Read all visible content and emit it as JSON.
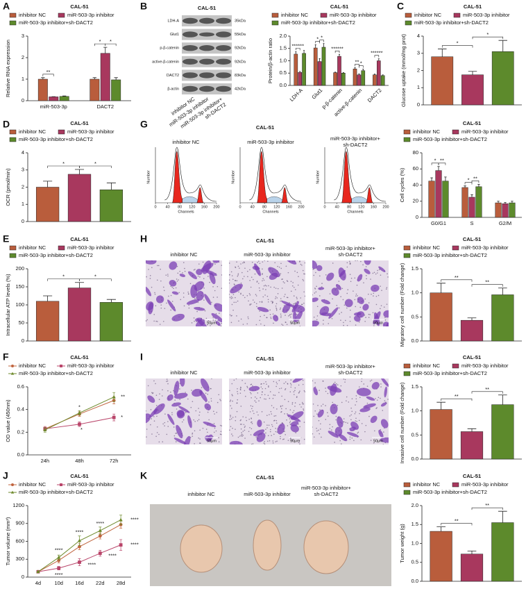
{
  "panel_labels": [
    "A",
    "B",
    "C",
    "D",
    "E",
    "F",
    "G",
    "H",
    "I",
    "J",
    "K"
  ],
  "chart_data": [
    {
      "type": "bar",
      "title": "CAL-51",
      "ylabel": "Relative RNA expression",
      "categories": [
        "miR-503-3p",
        "DACT2"
      ],
      "series": [
        {
          "name": "inhibitor NC",
          "color": "#b95d3c",
          "values": [
            1.0,
            1.0
          ],
          "errors": [
            0.07,
            0.07
          ]
        },
        {
          "name": "miR-503-3p inhibitor",
          "color": "#a8385e",
          "values": [
            0.18,
            2.2
          ],
          "errors": [
            0.01,
            0.28
          ]
        },
        {
          "name": "miR-503-3p inhibitor+sh-DACT2",
          "color": "#5d8a2c",
          "values": [
            0.2,
            0.97
          ],
          "errors": [
            0.02,
            0.1
          ]
        }
      ],
      "ylim": [
        0,
        3
      ],
      "yticks": [
        0,
        1,
        2,
        3
      ],
      "annotations": [
        "**",
        "*",
        "*"
      ]
    },
    {
      "type": "bar",
      "title": "CAL-51",
      "ylabel": "Protein/β-actin ratio",
      "categories": [
        "LDH-A",
        "Glut1",
        "p-β-catenin",
        "active-β-catenin",
        "DACT2"
      ],
      "series": [
        {
          "name": "inhibitor NC",
          "color": "#b95d3c",
          "values": [
            1.27,
            1.52,
            0.52,
            0.67,
            0.43
          ],
          "errors": [
            0.1,
            0.13,
            0.02,
            0.05,
            0.03
          ]
        },
        {
          "name": "miR-503-3p inhibitor",
          "color": "#a8385e",
          "values": [
            0.53,
            0.97,
            1.18,
            0.43,
            1.0
          ],
          "errors": [
            0.04,
            0.12,
            0.08,
            0.04,
            0.08
          ]
        },
        {
          "name": "miR-503-3p inhibitor+sh-DACT2",
          "color": "#5d8a2c",
          "values": [
            1.3,
            1.55,
            0.5,
            0.6,
            0.4
          ],
          "errors": [
            0.12,
            0.15,
            0.02,
            0.06,
            0.03
          ]
        }
      ],
      "ylim": [
        0,
        2
      ],
      "yticks": [
        {
          "value": 0,
          "label": "0.0"
        },
        0.5,
        {
          "value": 1,
          "label": "1.0"
        },
        1.5,
        {
          "value": 2,
          "label": "2.0"
        }
      ],
      "annotations": [
        "******",
        "*",
        "*",
        "******",
        "**",
        "*",
        "******"
      ]
    },
    {
      "type": "bar",
      "title": "CAL-51",
      "ylabel": "Glucose uptake (mmol/mg prot)",
      "series": [
        {
          "name": "inhibitor NC",
          "color": "#b95d3c",
          "values": [
            2.8
          ],
          "errors": [
            0.45
          ]
        },
        {
          "name": "miR-503-3p inhibitor",
          "color": "#a8385e",
          "values": [
            1.75
          ],
          "errors": [
            0.2
          ]
        },
        {
          "name": "miR-503-3p inhibitor+sh-DACT2",
          "color": "#5d8a2c",
          "values": [
            3.1
          ],
          "errors": [
            0.65
          ]
        }
      ],
      "ylim": [
        0,
        4
      ],
      "yticks": [
        0,
        1,
        2,
        3,
        4
      ],
      "annotations": [
        "*",
        "*"
      ]
    },
    {
      "type": "bar",
      "title": "CAL-51",
      "ylabel": "OCR (pmol/min)",
      "series": [
        {
          "name": "inhibitor NC",
          "color": "#b95d3c",
          "values": [
            2.0
          ],
          "errors": [
            0.35
          ]
        },
        {
          "name": "miR-503-3p inhibitor",
          "color": "#a8385e",
          "values": [
            2.75
          ],
          "errors": [
            0.28
          ]
        },
        {
          "name": "miR-503-3p inhibitor+sh-DACT2",
          "color": "#5d8a2c",
          "values": [
            1.85
          ],
          "errors": [
            0.4
          ]
        }
      ],
      "ylim": [
        0,
        4
      ],
      "yticks": [
        0,
        1,
        2,
        3,
        4
      ],
      "annotations": [
        "*",
        "*"
      ]
    },
    {
      "type": "bar",
      "title": "CAL-51",
      "ylabel": "Cell cycles (%)",
      "categories": [
        "G0/G1",
        "S",
        "G2/M"
      ],
      "series": [
        {
          "name": "inhibitor NC",
          "color": "#b95d3c",
          "values": [
            45,
            37,
            18
          ],
          "errors": [
            4,
            2,
            2
          ]
        },
        {
          "name": "miR-503-3p inhibitor",
          "color": "#a8385e",
          "values": [
            58,
            25,
            17
          ],
          "errors": [
            5,
            3,
            1.5
          ]
        },
        {
          "name": "miR-503-3p inhibitor+sh-DACT2",
          "color": "#5d8a2c",
          "values": [
            45,
            38,
            18
          ],
          "errors": [
            5,
            3,
            2
          ]
        }
      ],
      "ylim": [
        0,
        80
      ],
      "yticks": [
        0,
        20,
        40,
        60,
        80
      ],
      "annotations": [
        "*",
        "**",
        "*",
        "**"
      ]
    },
    {
      "type": "bar",
      "title": "CAL-51",
      "ylabel": "Intracellular ATP levels (%)",
      "series": [
        {
          "name": "inhibitor NC",
          "color": "#b95d3c",
          "values": [
            110
          ],
          "errors": [
            15
          ]
        },
        {
          "name": "miR-503-3p inhibitor",
          "color": "#a8385e",
          "values": [
            147
          ],
          "errors": [
            15
          ]
        },
        {
          "name": "miR-503-3p inhibitor+sh-DACT2",
          "color": "#5d8a2c",
          "values": [
            107
          ],
          "errors": [
            8
          ]
        }
      ],
      "ylim": [
        0,
        200
      ],
      "yticks": [
        0,
        50,
        100,
        150,
        200
      ],
      "annotations": [
        "*",
        "*"
      ]
    },
    {
      "type": "bar",
      "title": "CAL-51",
      "ylabel": "Migratory cell number (Fold change)",
      "series": [
        {
          "name": "inhibitor NC",
          "color": "#b95d3c",
          "values": [
            1.0
          ],
          "errors": [
            0.2
          ]
        },
        {
          "name": "miR-503-3p inhibitor",
          "color": "#a8385e",
          "values": [
            0.43
          ],
          "errors": [
            0.05
          ]
        },
        {
          "name": "miR-503-3p inhibitor+sh-DACT2",
          "color": "#5d8a2c",
          "values": [
            0.96
          ],
          "errors": [
            0.14
          ]
        }
      ],
      "ylim": [
        0,
        1.5
      ],
      "yticks": [
        {
          "value": 0,
          "label": "0.0"
        },
        0.5,
        {
          "value": 1,
          "label": "1.0"
        },
        1.5
      ],
      "annotations": [
        "**",
        "**"
      ]
    },
    {
      "type": "line",
      "title": "CAL-51",
      "ylabel": "OD value (450nm)",
      "categories": [
        "24h",
        "48h",
        "72h"
      ],
      "series": [
        {
          "name": "inhibitor NC",
          "color": "#c0643e",
          "marker": "circle",
          "values": [
            0.23,
            0.36,
            0.48
          ],
          "errors": [
            0.02,
            0.02,
            0.03
          ]
        },
        {
          "name": "miR-503-3p inhibitor",
          "color": "#b9456a",
          "marker": "square",
          "values": [
            0.23,
            0.27,
            0.33
          ],
          "errors": [
            0.02,
            0.02,
            0.03
          ]
        },
        {
          "name": "miR-503-3p inhibitor+sh-DACT2",
          "color": "#6e8a2c",
          "marker": "triangle",
          "values": [
            0.22,
            0.37,
            0.51
          ],
          "errors": [
            0.02,
            0.02,
            0.04
          ]
        }
      ],
      "ylim": [
        0,
        0.6
      ],
      "yticks": [
        {
          "value": 0,
          "label": "0.0"
        },
        0.2,
        0.4,
        0.6
      ],
      "annotations": [
        "*",
        "*",
        "**",
        "*"
      ]
    },
    {
      "type": "bar",
      "title": "CAL-51",
      "ylabel": "Invasive cell number (Fold change)",
      "series": [
        {
          "name": "inhibitor NC",
          "color": "#b95d3c",
          "values": [
            1.03
          ],
          "errors": [
            0.15
          ]
        },
        {
          "name": "miR-503-3p inhibitor",
          "color": "#a8385e",
          "values": [
            0.57
          ],
          "errors": [
            0.06
          ]
        },
        {
          "name": "miR-503-3p inhibitor+sh-DACT2",
          "color": "#5d8a2c",
          "values": [
            1.13
          ],
          "errors": [
            0.2
          ]
        }
      ],
      "ylim": [
        0,
        1.5
      ],
      "yticks": [
        {
          "value": 0,
          "label": "0.0"
        },
        0.5,
        {
          "value": 1,
          "label": "1.0"
        },
        1.5
      ],
      "annotations": [
        "**",
        "**"
      ]
    },
    {
      "type": "line",
      "title": "CAL-51",
      "ylabel": "Tumor volume (mm³)",
      "categories": [
        "4d",
        "10d",
        "16d",
        "22d",
        "28d"
      ],
      "series": [
        {
          "name": "inhibitor NC",
          "color": "#c0643e",
          "marker": "circle",
          "values": [
            90,
            280,
            510,
            690,
            880
          ],
          "errors": [
            10,
            40,
            50,
            50,
            60
          ]
        },
        {
          "name": "miR-503-3p inhibitor",
          "color": "#b9456a",
          "marker": "square",
          "values": [
            90,
            150,
            250,
            400,
            540
          ],
          "errors": [
            10,
            30,
            60,
            50,
            90
          ]
        },
        {
          "name": "miR-503-3p inhibitor+sh-DACT2",
          "color": "#6e8a2c",
          "marker": "triangle",
          "values": [
            90,
            330,
            610,
            780,
            960
          ],
          "errors": [
            10,
            40,
            80,
            60,
            80
          ]
        }
      ],
      "ylim": [
        0,
        1200
      ],
      "yticks": [
        0,
        300,
        600,
        900,
        1200
      ],
      "annotations": [
        "****",
        "****",
        "****",
        "****",
        "****",
        "****",
        "****",
        "****"
      ]
    },
    {
      "type": "bar",
      "title": "CAL-51",
      "ylabel": "Tumor weight (g)",
      "series": [
        {
          "name": "inhibitor NC",
          "color": "#b95d3c",
          "values": [
            1.32
          ],
          "errors": [
            0.12
          ]
        },
        {
          "name": "miR-503-3p inhibitor",
          "color": "#a8385e",
          "values": [
            0.72
          ],
          "errors": [
            0.08
          ]
        },
        {
          "name": "miR-503-3p inhibitor+sh-DACT2",
          "color": "#5d8a2c",
          "values": [
            1.55
          ],
          "errors": [
            0.3
          ]
        }
      ],
      "ylim": [
        0,
        2
      ],
      "yticks": [
        {
          "value": 0,
          "label": "0.0"
        },
        0.5,
        {
          "value": 1,
          "label": "1.0"
        },
        1.5,
        {
          "value": 2,
          "label": "2.0"
        }
      ],
      "annotations": [
        "**",
        "**"
      ]
    }
  ],
  "blot": {
    "title": "CAL-51",
    "proteins": [
      "LDH-A",
      "Glut1",
      "p-β-catenin",
      "active-β-catenin",
      "DACT2",
      "β-actin"
    ],
    "sizes": [
      "35kDa",
      "55kDa",
      "92kDa",
      "92kDa",
      "83kDa",
      "42kDa"
    ],
    "lanes": [
      [
        "inhibitor NC"
      ],
      [
        "miR-503-3p inhibitor"
      ],
      [
        "miR-503-3p inhibitor+",
        "sh-DACT2"
      ]
    ]
  },
  "flow": {
    "title": "CAL-51",
    "samples": [
      [
        "inhibitor NC"
      ],
      [
        "miR-503-3p inhibitor"
      ],
      [
        "miR-503-3p inhibitor+",
        "sh-DACT2"
      ]
    ],
    "xlabel": "Channels",
    "ylabel": "Number",
    "xticks": [
      0,
      40,
      80,
      120,
      160,
      200
    ]
  },
  "migration": {
    "title": "CAL-51",
    "samples": [
      [
        "inhibitor NC"
      ],
      [
        "miR-503-3p inhibitor"
      ],
      [
        "miR-503-3p inhibitor+",
        "sh-DACT2"
      ]
    ],
    "scale_bar": "50μm"
  },
  "invasion": {
    "title": "CAL-51",
    "samples": [
      [
        "inhibitor NC"
      ],
      [
        "miR-503-3p inhibitor"
      ],
      [
        "miR-503-3p inhibitor+",
        "sh-DACT2"
      ]
    ],
    "scale_bar": "50μm"
  },
  "tumor": {
    "title": "CAL-51",
    "samples": [
      [
        "inhibitor NC"
      ],
      [
        "miR-503-3p inhibitor"
      ],
      [
        "miR-503-3p inhibitor+",
        "sh-DACT2"
      ]
    ]
  }
}
